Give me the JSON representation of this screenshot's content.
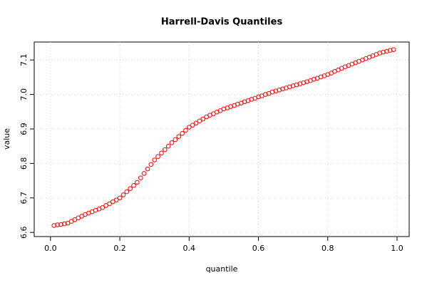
{
  "chart_data": {
    "type": "scatter",
    "title": "Harrell-Davis Quantiles",
    "x_label": "quantile",
    "y_label": "value",
    "color": "#ff0000",
    "grid": true,
    "xlim": [
      -0.047,
      1.035
    ],
    "ylim": [
      6.588,
      7.152
    ],
    "xticks": [
      {
        "value": 0,
        "label": "0.0"
      },
      0.2,
      0.4,
      0.6,
      0.8,
      {
        "value": 1,
        "label": "1.0"
      }
    ],
    "yticks": [
      6.6,
      6.7,
      6.8,
      6.9,
      {
        "value": 7,
        "label": "7.0"
      },
      7.1
    ],
    "x": [
      0.01,
      0.02,
      0.03,
      0.04,
      0.05,
      0.06,
      0.07,
      0.08,
      0.09,
      0.1,
      0.11,
      0.12,
      0.13,
      0.14,
      0.15,
      0.16,
      0.17,
      0.18,
      0.19,
      0.2,
      0.21,
      0.22,
      0.23,
      0.24,
      0.25,
      0.26,
      0.27,
      0.28,
      0.29,
      0.3,
      0.31,
      0.32,
      0.33,
      0.34,
      0.35,
      0.36,
      0.37,
      0.38,
      0.39,
      0.4,
      0.41,
      0.42,
      0.43,
      0.44,
      0.45,
      0.46,
      0.47,
      0.48,
      0.49,
      0.5,
      0.51,
      0.52,
      0.53,
      0.54,
      0.55,
      0.56,
      0.57,
      0.58,
      0.59,
      0.6,
      0.61,
      0.62,
      0.63,
      0.64,
      0.65,
      0.66,
      0.67,
      0.68,
      0.69,
      0.7,
      0.71,
      0.72,
      0.73,
      0.74,
      0.75,
      0.76,
      0.77,
      0.78,
      0.79,
      0.8,
      0.81,
      0.82,
      0.83,
      0.84,
      0.85,
      0.86,
      0.87,
      0.88,
      0.89,
      0.9,
      0.91,
      0.92,
      0.93,
      0.94,
      0.95,
      0.96,
      0.97,
      0.98,
      0.99
    ],
    "values": [
      6.62,
      6.622,
      6.623,
      6.625,
      6.627,
      6.632,
      6.637,
      6.642,
      6.647,
      6.652,
      6.656,
      6.66,
      6.664,
      6.668,
      6.672,
      6.678,
      6.683,
      6.689,
      6.694,
      6.7,
      6.709,
      6.718,
      6.727,
      6.736,
      6.745,
      6.758,
      6.771,
      6.784,
      6.797,
      6.81,
      6.82,
      6.83,
      6.84,
      6.85,
      6.86,
      6.869,
      6.878,
      6.887,
      6.896,
      6.905,
      6.911,
      6.917,
      6.923,
      6.929,
      6.935,
      6.94,
      6.944,
      6.949,
      6.953,
      6.958,
      6.961,
      6.965,
      6.968,
      6.972,
      6.975,
      6.979,
      6.982,
      6.986,
      6.989,
      6.993,
      6.996,
      7.0,
      7.003,
      7.007,
      7.01,
      7.013,
      7.016,
      7.019,
      7.022,
      7.025,
      7.028,
      7.031,
      7.034,
      7.037,
      7.04,
      7.044,
      7.047,
      7.051,
      7.054,
      7.058,
      7.062,
      7.067,
      7.071,
      7.076,
      7.08,
      7.084,
      7.088,
      7.092,
      7.096,
      7.1,
      7.104,
      7.108,
      7.112,
      7.116,
      7.12,
      7.123,
      7.125,
      7.128,
      7.13
    ]
  }
}
